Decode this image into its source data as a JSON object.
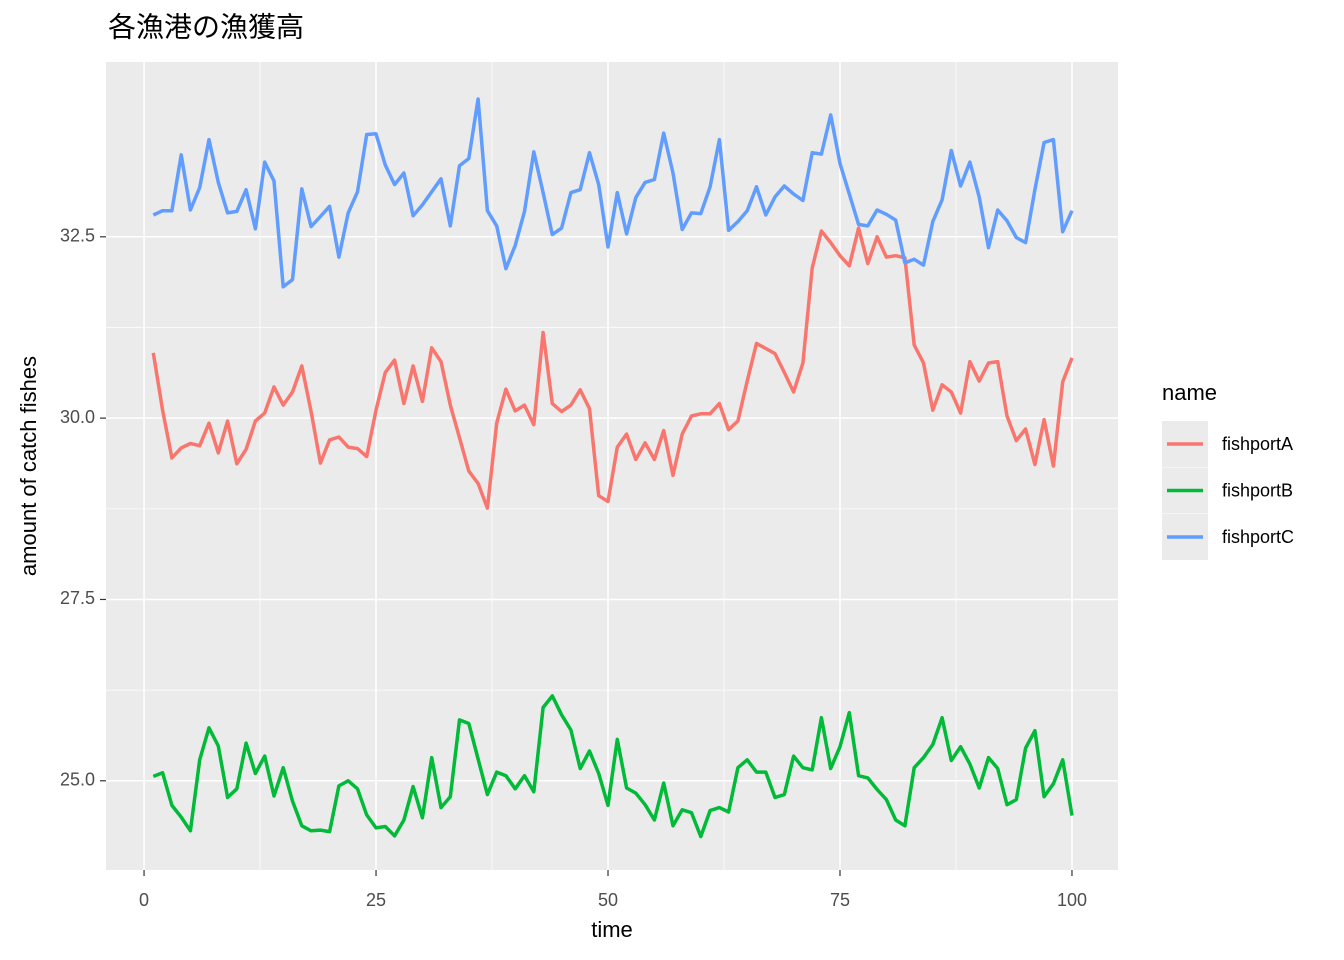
{
  "chart_data": {
    "type": "line",
    "title": "各漁港の漁獲高",
    "x_label": "time",
    "y_label": "amount of catch fishes",
    "legend_title": "name",
    "legend_position": "right",
    "grid": true,
    "x": [
      1,
      2,
      3,
      4,
      5,
      6,
      7,
      8,
      9,
      10,
      11,
      12,
      13,
      14,
      15,
      16,
      17,
      18,
      19,
      20,
      21,
      22,
      23,
      24,
      25,
      26,
      27,
      28,
      29,
      30,
      31,
      32,
      33,
      34,
      35,
      36,
      37,
      38,
      39,
      40,
      41,
      42,
      43,
      44,
      45,
      46,
      47,
      48,
      49,
      50,
      51,
      52,
      53,
      54,
      55,
      56,
      57,
      58,
      59,
      60,
      61,
      62,
      63,
      64,
      65,
      66,
      67,
      68,
      69,
      70,
      71,
      72,
      73,
      74,
      75,
      76,
      77,
      78,
      79,
      80,
      81,
      82,
      83,
      84,
      85,
      86,
      87,
      88,
      89,
      90,
      91,
      92,
      93,
      94,
      95,
      96,
      97,
      98,
      99,
      100
    ],
    "xlim": [
      -4.1,
      104.96
    ],
    "xticks": [
      0,
      25,
      50,
      75,
      100
    ],
    "ylim": [
      23.77,
      34.91
    ],
    "yticks": [
      {
        "value": 25,
        "label": "25.0"
      },
      {
        "value": 27.5,
        "label": "27.5"
      },
      {
        "value": 30,
        "label": "30.0"
      },
      {
        "value": 32.5,
        "label": "32.5"
      }
    ],
    "series": [
      {
        "name": "fishportA",
        "color": "#F8766D",
        "values": [
          30.9,
          30.11,
          29.45,
          29.59,
          29.65,
          29.62,
          29.93,
          29.52,
          29.96,
          29.37,
          29.57,
          29.96,
          30.07,
          30.43,
          30.18,
          30.36,
          30.72,
          30.09,
          29.38,
          29.7,
          29.74,
          29.6,
          29.58,
          29.47,
          30.11,
          30.63,
          30.8,
          30.2,
          30.72,
          30.23,
          30.97,
          30.78,
          30.18,
          29.73,
          29.27,
          29.1,
          28.76,
          29.93,
          30.4,
          30.1,
          30.18,
          29.91,
          31.18,
          30.2,
          30.09,
          30.18,
          30.39,
          30.13,
          28.93,
          28.85,
          29.6,
          29.78,
          29.43,
          29.66,
          29.43,
          29.83,
          29.21,
          29.78,
          30.03,
          30.06,
          30.06,
          30.2,
          29.84,
          29.96,
          30.51,
          31.03,
          30.96,
          30.89,
          30.63,
          30.36,
          30.76,
          32.07,
          32.58,
          32.42,
          32.24,
          32.1,
          32.62,
          32.13,
          32.5,
          32.22,
          32.24,
          32.21,
          31.01,
          30.76,
          30.11,
          30.46,
          30.36,
          30.07,
          30.78,
          30.51,
          30.76,
          30.78,
          30.03,
          29.69,
          29.85,
          29.36,
          29.98,
          29.34,
          30.5,
          30.83
        ]
      },
      {
        "name": "fishportB",
        "color": "#00BA38",
        "values": [
          25.06,
          25.11,
          24.66,
          24.5,
          24.31,
          25.29,
          25.73,
          25.48,
          24.77,
          24.89,
          25.52,
          25.1,
          25.34,
          24.79,
          25.18,
          24.72,
          24.38,
          24.31,
          24.32,
          24.3,
          24.93,
          25.0,
          24.89,
          24.53,
          24.35,
          24.37,
          24.24,
          24.46,
          24.92,
          24.49,
          25.32,
          24.63,
          24.78,
          25.84,
          25.79,
          25.3,
          24.81,
          25.12,
          25.07,
          24.89,
          25.07,
          24.85,
          26.01,
          26.17,
          25.91,
          25.7,
          25.17,
          25.41,
          25.1,
          24.66,
          25.57,
          24.9,
          24.83,
          24.67,
          24.46,
          24.97,
          24.38,
          24.6,
          24.56,
          24.23,
          24.59,
          24.63,
          24.57,
          25.18,
          25.29,
          25.12,
          25.12,
          24.77,
          24.81,
          25.34,
          25.18,
          25.15,
          25.87,
          25.17,
          25.47,
          25.94,
          25.07,
          25.04,
          24.88,
          24.74,
          24.46,
          24.38,
          25.18,
          25.32,
          25.5,
          25.87,
          25.28,
          25.47,
          25.23,
          24.9,
          25.32,
          25.17,
          24.67,
          24.74,
          25.45,
          25.69,
          24.78,
          24.96,
          25.29,
          24.52
        ]
      },
      {
        "name": "fishportC",
        "color": "#619CFF",
        "values": [
          32.8,
          32.86,
          32.86,
          33.63,
          32.87,
          33.18,
          33.84,
          33.25,
          32.83,
          32.85,
          33.15,
          32.61,
          33.53,
          33.27,
          31.81,
          31.91,
          33.16,
          32.64,
          32.78,
          32.92,
          32.22,
          32.83,
          33.12,
          33.91,
          33.92,
          33.49,
          33.22,
          33.38,
          32.79,
          32.94,
          33.12,
          33.3,
          32.65,
          33.48,
          33.58,
          34.4,
          32.86,
          32.65,
          32.06,
          32.38,
          32.85,
          33.67,
          33.11,
          32.53,
          32.62,
          33.11,
          33.15,
          33.66,
          33.22,
          32.36,
          33.11,
          32.54,
          33.04,
          33.25,
          33.29,
          33.93,
          33.38,
          32.6,
          32.83,
          32.82,
          33.19,
          33.84,
          32.59,
          32.71,
          32.86,
          33.19,
          32.8,
          33.05,
          33.2,
          33.09,
          33.0,
          33.66,
          33.64,
          34.18,
          33.51,
          33.09,
          32.67,
          32.65,
          32.87,
          32.81,
          32.73,
          32.14,
          32.19,
          32.11,
          32.71,
          33.01,
          33.69,
          33.2,
          33.53,
          33.05,
          32.35,
          32.87,
          32.72,
          32.49,
          32.42,
          33.15,
          33.8,
          33.84,
          32.57,
          32.86
        ]
      }
    ]
  }
}
